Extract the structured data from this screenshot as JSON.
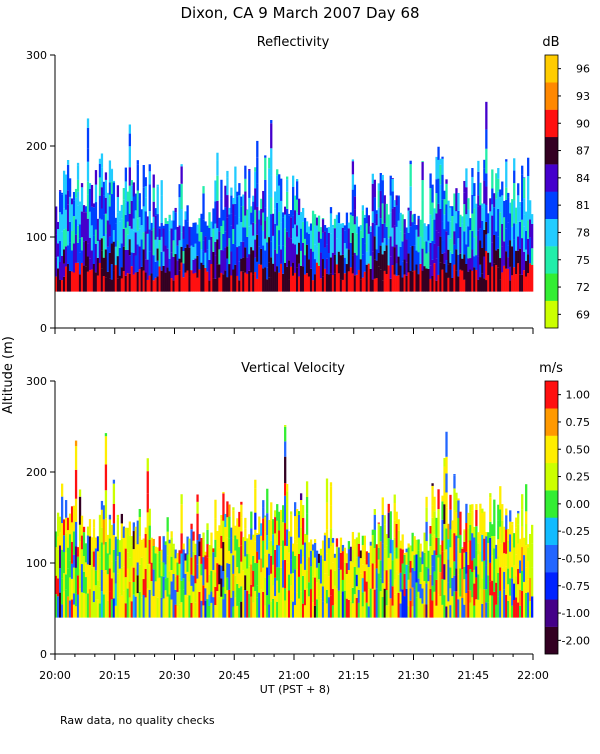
{
  "title": "Dixon, CA  9 March 2007  Day  68",
  "ylabel": "Altitude (m)",
  "xlabel": "UT  (PST + 8)",
  "footnote": "Raw data, no quality checks",
  "chart_data": [
    {
      "type": "heatmap",
      "title": "Reflectivity",
      "colorbar_label": "dB",
      "x_ticks": [
        "20:00",
        "20:15",
        "20:30",
        "20:45",
        "21:00",
        "21:15",
        "21:30",
        "21:45",
        "22:00"
      ],
      "y_ticks": [
        0,
        100,
        200,
        300
      ],
      "xlim": [
        "20:00",
        "22:00"
      ],
      "ylim": [
        0,
        300
      ],
      "data_floor_m": 40,
      "colorbar_ticks": [
        "96",
        "93",
        "90",
        "87",
        "84",
        "81",
        "78",
        "75",
        "72",
        "69"
      ],
      "colors": [
        "#ccff00",
        "#33ee33",
        "#22eeaa",
        "#22ccff",
        "#0040ff",
        "#4400cc",
        "#330022",
        "#ff1010",
        "#ff8800",
        "#ffcc00"
      ]
    },
    {
      "type": "heatmap",
      "title": "Vertical Velocity",
      "colorbar_label": "m/s",
      "x_ticks": [
        "20:00",
        "20:15",
        "20:30",
        "20:45",
        "21:00",
        "21:15",
        "21:30",
        "21:45",
        "22:00"
      ],
      "y_ticks": [
        0,
        100,
        200,
        300
      ],
      "xlim": [
        "20:00",
        "22:00"
      ],
      "ylim": [
        0,
        300
      ],
      "data_floor_m": 40,
      "colorbar_ticks": [
        "1.00",
        "0.75",
        "0.50",
        "0.25",
        "0.00",
        "-0.25",
        "-0.50",
        "-0.75",
        "-1.00",
        "-2.00"
      ],
      "colors": [
        "#330022",
        "#440088",
        "#0022ff",
        "#2266ff",
        "#11bbff",
        "#33ee33",
        "#ccff00",
        "#ffee00",
        "#ff9900",
        "#ff1010"
      ]
    }
  ]
}
